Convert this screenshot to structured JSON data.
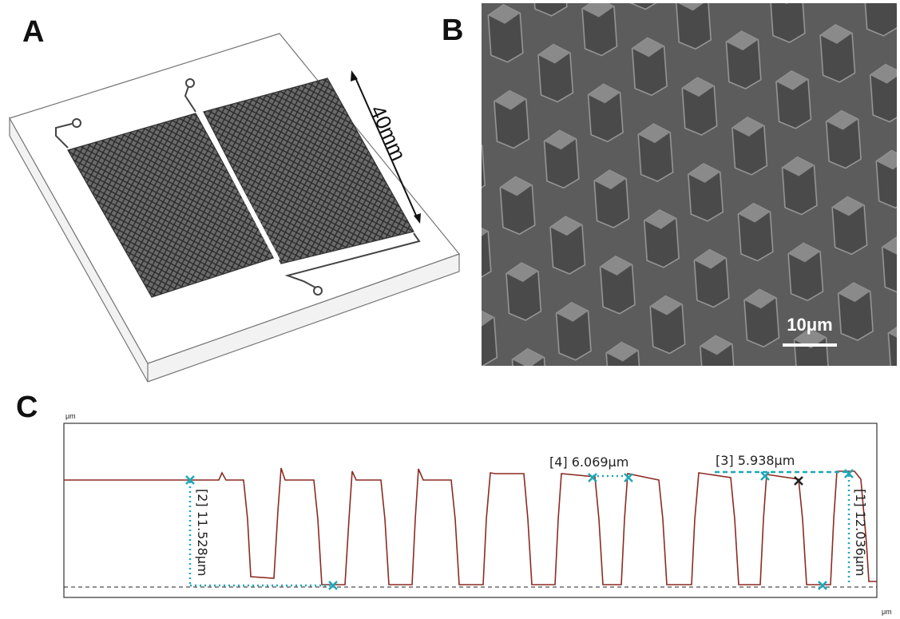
{
  "panels": {
    "a": {
      "label": "A",
      "dimension": "40mm"
    },
    "b": {
      "label": "B",
      "scale_bar": "10μm"
    },
    "c": {
      "label": "C",
      "y_unit": "μm",
      "x_unit": "μm",
      "measurements": [
        "[1] 12.036μm",
        "[2] 11.528μm",
        "[3] 5.938μm",
        "[4] 6.069μm"
      ]
    }
  }
}
